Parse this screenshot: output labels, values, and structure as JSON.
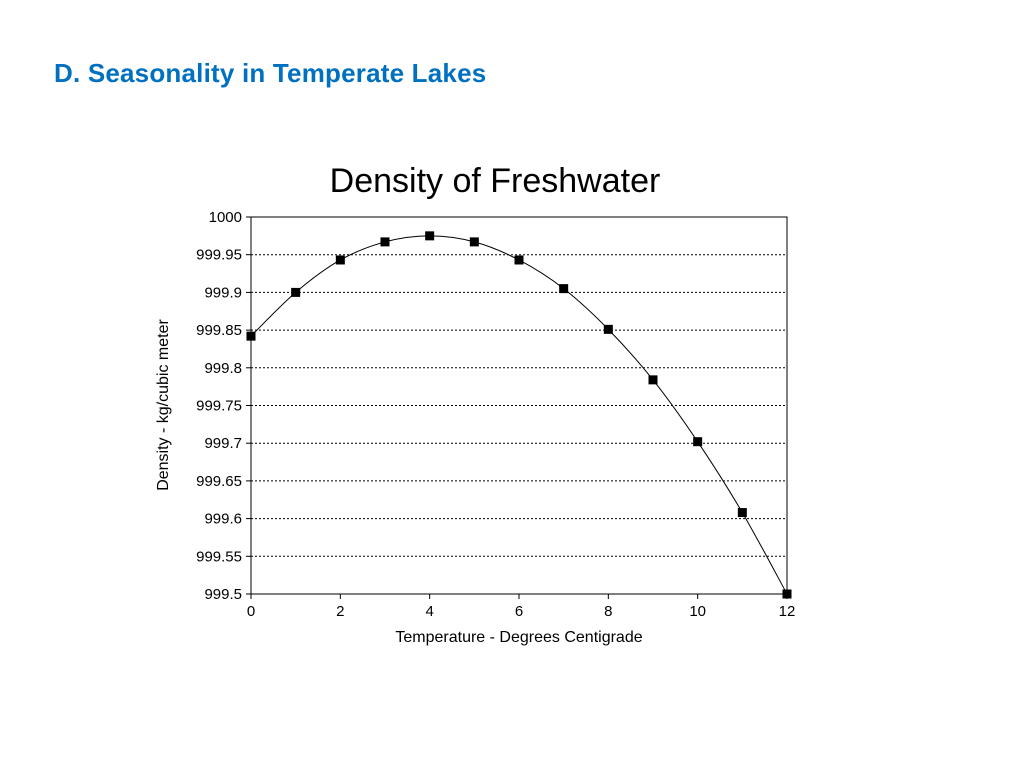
{
  "slide": {
    "title": "D. Seasonality in Temperate Lakes",
    "title_color": "#0070C0"
  },
  "chart_data": {
    "type": "line",
    "title": "Density of Freshwater",
    "xlabel": "Temperature - Degrees Centigrade",
    "ylabel": "Density - kg/cubic meter",
    "xlim": [
      0,
      12
    ],
    "ylim": [
      999.5,
      1000
    ],
    "x_ticks": [
      "0",
      "2",
      "4",
      "6",
      "8",
      "10",
      "12"
    ],
    "y_ticks": [
      "1000",
      "999.95",
      "999.9",
      "999.85",
      "999.8",
      "999.75",
      "999.7",
      "999.65",
      "999.6",
      "999.55",
      "999.5"
    ],
    "grid": "horizontal dotted",
    "marker": "square",
    "series": [
      {
        "x": [
          0,
          1,
          2,
          3,
          4,
          5,
          6,
          7,
          8,
          9,
          10,
          11,
          12
        ],
        "values": [
          999.842,
          999.9,
          999.943,
          999.967,
          999.975,
          999.967,
          999.943,
          999.905,
          999.851,
          999.784,
          999.702,
          999.608,
          999.5
        ]
      }
    ]
  }
}
